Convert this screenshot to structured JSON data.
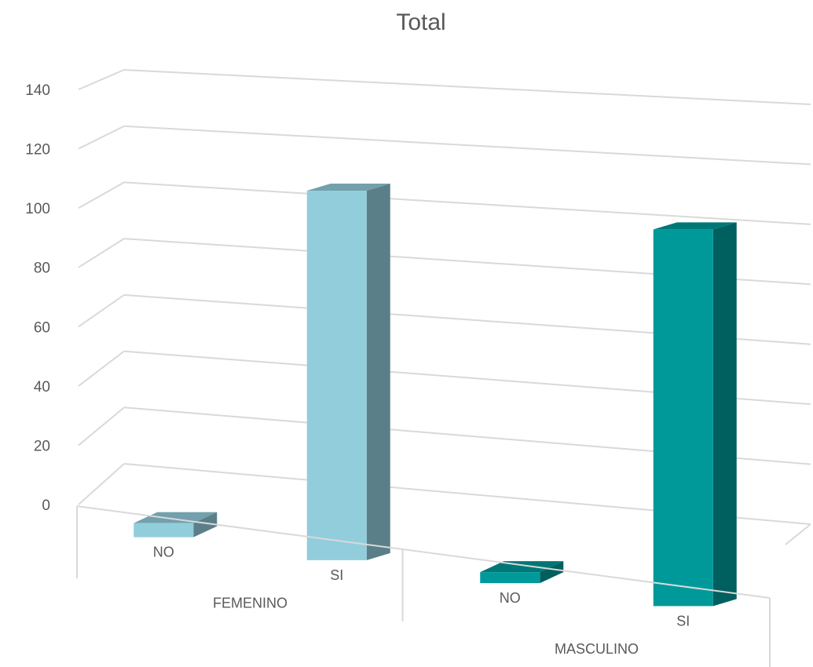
{
  "chart_data": {
    "type": "bar",
    "title": "Total",
    "xlabel": "",
    "ylabel": "",
    "ylim": [
      0,
      140
    ],
    "yticks": [
      "0",
      "20",
      "40",
      "60",
      "80",
      "100",
      "120",
      "140"
    ],
    "groups": [
      {
        "label": "FEMENINO",
        "categories": [
          "NO",
          "SI"
        ],
        "values": [
          5,
          129
        ],
        "color": "#92cddc"
      },
      {
        "label": "MASCULINO",
        "categories": [
          "NO",
          "SI"
        ],
        "values": [
          3,
          128
        ],
        "color": "#009999"
      }
    ],
    "grid": true,
    "legend": "none",
    "style": "3d-perspective"
  }
}
